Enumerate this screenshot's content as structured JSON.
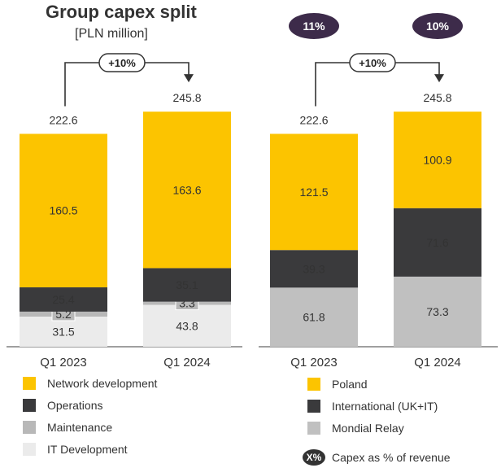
{
  "title": "Group capex split",
  "subtitle": "[PLN million]",
  "chart_data": [
    {
      "type": "bar",
      "stacked": true,
      "name": "by-type",
      "categories": [
        "Q1 2023",
        "Q1 2024"
      ],
      "totals": [
        "222.6",
        "245.8"
      ],
      "growth": "+10%",
      "series": [
        {
          "name": "IT Development",
          "color": "#ebebeb",
          "values": [
            31.5,
            43.8
          ],
          "labels": [
            "31.5",
            "43.8"
          ]
        },
        {
          "name": "Maintenance",
          "color": "#b8b8b8",
          "values": [
            5.2,
            3.3
          ],
          "labels": [
            "5.2",
            "3.3"
          ]
        },
        {
          "name": "Operations",
          "color": "#3a3a3c",
          "values": [
            25.4,
            35.1
          ],
          "labels": [
            "25.4",
            "35.1"
          ]
        },
        {
          "name": "Network development",
          "color": "#fcc400",
          "values": [
            160.5,
            163.6
          ],
          "labels": [
            "160.5",
            "163.6"
          ]
        }
      ],
      "legend": [
        "Network development",
        "Operations",
        "Maintenance",
        "IT Development"
      ]
    },
    {
      "type": "bar",
      "stacked": true,
      "name": "by-geography",
      "categories": [
        "Q1 2023",
        "Q1 2024"
      ],
      "totals": [
        "222.6",
        "245.8"
      ],
      "growth": "+10%",
      "capex_pct_revenue": [
        "11%",
        "10%"
      ],
      "series": [
        {
          "name": "Mondial Relay",
          "color": "#c0c0c0",
          "values": [
            61.8,
            73.3
          ],
          "labels": [
            "61.8",
            "73.3"
          ]
        },
        {
          "name": "International (UK+IT)",
          "color": "#3a3a3c",
          "values": [
            39.3,
            71.6
          ],
          "labels": [
            "39.3",
            "71.6"
          ]
        },
        {
          "name": "Poland",
          "color": "#fcc400",
          "values": [
            121.5,
            100.9
          ],
          "labels": [
            "121.5",
            "100.9"
          ]
        }
      ],
      "legend": [
        "Poland",
        "International (UK+IT)",
        "Mondial Relay"
      ],
      "pct_legend": {
        "badge": "X%",
        "label": "Capex as % of revenue"
      }
    }
  ],
  "colors": {
    "badge": "#3d2b4a",
    "axis": "#666666"
  }
}
